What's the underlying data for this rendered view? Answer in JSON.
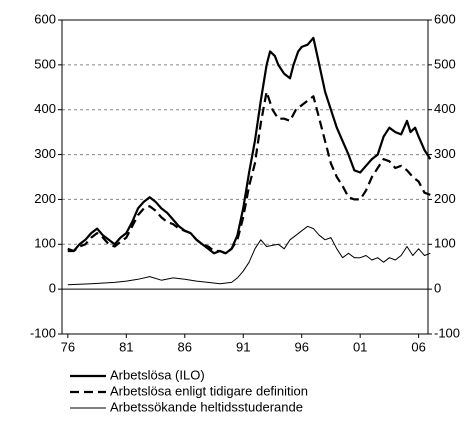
{
  "chart_data": {
    "type": "line",
    "xlim": [
      1975.5,
      2006.8
    ],
    "xticks": [
      {
        "value": 1976,
        "label": "76"
      },
      {
        "value": 1981,
        "label": "81"
      },
      {
        "value": 1986,
        "label": "86"
      },
      {
        "value": 1991,
        "label": "91"
      },
      {
        "value": 1996,
        "label": "96"
      },
      {
        "value": 2001,
        "label": "01"
      },
      {
        "value": 2006,
        "label": "06"
      }
    ],
    "ylim": [
      -100,
      600
    ],
    "yticks": [
      -100,
      0,
      100,
      200,
      300,
      400,
      500,
      600
    ],
    "y2lim": [
      -100,
      600
    ],
    "y2ticks": [
      -100,
      0,
      100,
      200,
      300,
      400,
      500,
      600
    ],
    "grid": true,
    "legend": "bottom",
    "series": [
      {
        "name": "Arbetslösa (ILO)",
        "color": "#000000",
        "line_width": 2.2,
        "dash": "solid",
        "x": [
          1976,
          1976.5,
          1977,
          1977.5,
          1978,
          1978.5,
          1979,
          1979.5,
          1980,
          1980.5,
          1981,
          1981.5,
          1982,
          1982.5,
          1983,
          1983.5,
          1984,
          1984.5,
          1985,
          1985.5,
          1986,
          1986.5,
          1987,
          1987.5,
          1988,
          1988.5,
          1989,
          1989.5,
          1990,
          1990.5,
          1991,
          1991.5,
          1992,
          1992.5,
          1993,
          1993.3,
          1993.7,
          1994,
          1994.5,
          1995,
          1995.3,
          1995.7,
          1996,
          1996.5,
          1997,
          1997.5,
          1998,
          1998.5,
          1999,
          1999.5,
          2000,
          2000.5,
          2001,
          2001.5,
          2002,
          2002.5,
          2003,
          2003.5,
          2004,
          2004.5,
          2005,
          2005.3,
          2005.7,
          2006,
          2006.5,
          2007
        ],
        "values": [
          90,
          85,
          100,
          110,
          125,
          135,
          120,
          110,
          100,
          115,
          125,
          150,
          180,
          195,
          205,
          195,
          180,
          170,
          155,
          140,
          130,
          125,
          110,
          100,
          90,
          80,
          85,
          80,
          90,
          120,
          180,
          260,
          330,
          420,
          500,
          530,
          520,
          500,
          480,
          470,
          500,
          530,
          540,
          545,
          560,
          500,
          440,
          400,
          360,
          330,
          300,
          265,
          260,
          275,
          290,
          300,
          340,
          360,
          350,
          345,
          375,
          350,
          360,
          340,
          310,
          290
        ]
      },
      {
        "name": "Arbetslösa enligt tidigare definition",
        "color": "#000000",
        "line_width": 2.2,
        "dash": "dashed",
        "x": [
          1976,
          1976.5,
          1977,
          1977.5,
          1978,
          1978.5,
          1979,
          1979.5,
          1980,
          1980.5,
          1981,
          1981.5,
          1982,
          1982.5,
          1983,
          1983.5,
          1984,
          1984.5,
          1985,
          1985.5,
          1986,
          1986.5,
          1987,
          1987.5,
          1988,
          1988.5,
          1989,
          1989.5,
          1990,
          1990.5,
          1991,
          1991.5,
          1992,
          1992.5,
          1993,
          1993.5,
          1994,
          1994.5,
          1995,
          1995.5,
          1996,
          1996.5,
          1997,
          1997.5,
          1998,
          1998.5,
          1999,
          1999.5,
          2000,
          2000.5,
          2001,
          2001.5,
          2002,
          2002.5,
          2003,
          2003.5,
          2004,
          2004.5,
          2005,
          2005.5,
          2006,
          2006.5,
          2007
        ],
        "values": [
          85,
          85,
          95,
          100,
          115,
          125,
          115,
          100,
          95,
          105,
          115,
          140,
          165,
          180,
          185,
          175,
          160,
          150,
          145,
          135,
          130,
          125,
          110,
          100,
          95,
          85,
          85,
          80,
          90,
          110,
          160,
          230,
          280,
          370,
          440,
          400,
          380,
          380,
          375,
          400,
          410,
          420,
          430,
          380,
          330,
          280,
          250,
          230,
          205,
          200,
          200,
          220,
          250,
          270,
          290,
          285,
          270,
          275,
          265,
          250,
          240,
          215,
          210
        ]
      },
      {
        "name": "Arbetssökande heltidsstuderande",
        "color": "#000000",
        "line_width": 1,
        "dash": "solid",
        "x": [
          1976,
          1978,
          1980,
          1981,
          1982,
          1983,
          1984,
          1985,
          1986,
          1987,
          1988,
          1989,
          1990,
          1990.5,
          1991,
          1991.5,
          1992,
          1992.5,
          1993,
          1994,
          1994.5,
          1995,
          1995.5,
          1996,
          1996.5,
          1997,
          1997.5,
          1998,
          1998.5,
          1999,
          1999.5,
          2000,
          2000.5,
          2001,
          2001.5,
          2002,
          2002.5,
          2003,
          2003.5,
          2004,
          2004.5,
          2005,
          2005.5,
          2006,
          2006.5,
          2007
        ],
        "values": [
          10,
          12,
          15,
          18,
          22,
          28,
          20,
          25,
          22,
          18,
          15,
          12,
          15,
          25,
          40,
          60,
          90,
          110,
          95,
          100,
          90,
          110,
          120,
          130,
          140,
          135,
          120,
          110,
          115,
          90,
          70,
          80,
          70,
          70,
          75,
          65,
          70,
          60,
          70,
          65,
          75,
          95,
          75,
          90,
          75,
          80
        ]
      }
    ]
  }
}
